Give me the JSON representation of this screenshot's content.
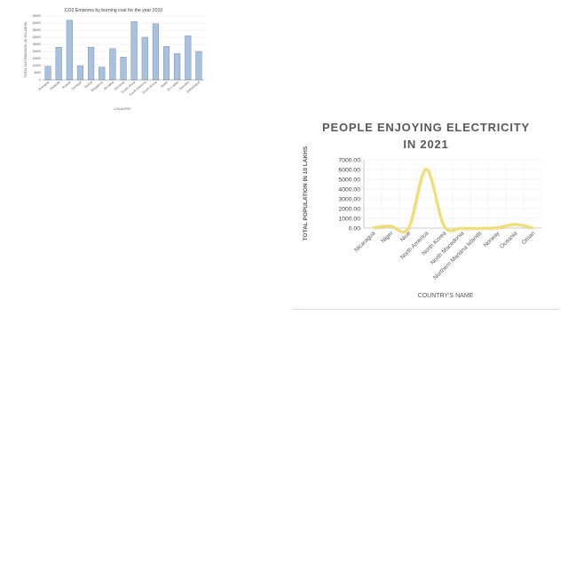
{
  "chart_data": [
    {
      "type": "bar",
      "title": "CO2 Emisions by burning coal for the year 2010",
      "xlabel": "COUNTRY",
      "ylabel": "TOTAL CO2 EMISSION (IN 10 LAKHS)",
      "categories": [
        "Romania",
        "Rwanda",
        "Russia",
        "Senegal",
        "Serbia",
        "Singapore",
        "Slovakia",
        "Slovenia",
        "South Africa",
        "South America",
        "South Korea",
        "Spain",
        "Sri Lanka",
        "Sweden",
        "Switzerland"
      ],
      "values": [
        9500,
        23000,
        42000,
        10000,
        23000,
        9000,
        22000,
        16000,
        41000,
        30000,
        39500,
        23500,
        18500,
        31000,
        20000
      ],
      "ylim": [
        0,
        45000
      ],
      "yticks": [
        "0",
        "5000",
        "10000",
        "15000",
        "20000",
        "25000",
        "30000",
        "35000",
        "40000",
        "45000"
      ],
      "colors": {
        "bar": "#a9c1de",
        "bar_stroke": "#5b7fae"
      },
      "grid": true
    },
    {
      "type": "line",
      "title_lines": [
        "PEOPLE ENJOYING ELECTRICITY",
        "IN 2021"
      ],
      "xlabel": "COUNTRY'S NAME",
      "ylabel": "TOTAL POPULATION IN 10 LAKHS",
      "categories": [
        "Nicaragua",
        "Niger",
        "Niue",
        "North America",
        "North Korea",
        "North Macedonia",
        "Northern Mariana Islands",
        "Norway",
        "Oceania",
        "Oman"
      ],
      "values": [
        60,
        230,
        0.01,
        6050,
        260,
        20,
        0.05,
        50,
        400,
        45
      ],
      "ylim": [
        0,
        7000
      ],
      "yticks": [
        "0.00",
        "1000.00",
        "2000.00",
        "3000.00",
        "4000.00",
        "5000.00",
        "6000.00",
        "7000.00"
      ],
      "colors": {
        "line": "#f2dc6b",
        "line_shadow": "#d9c24a"
      },
      "grid": true
    }
  ]
}
